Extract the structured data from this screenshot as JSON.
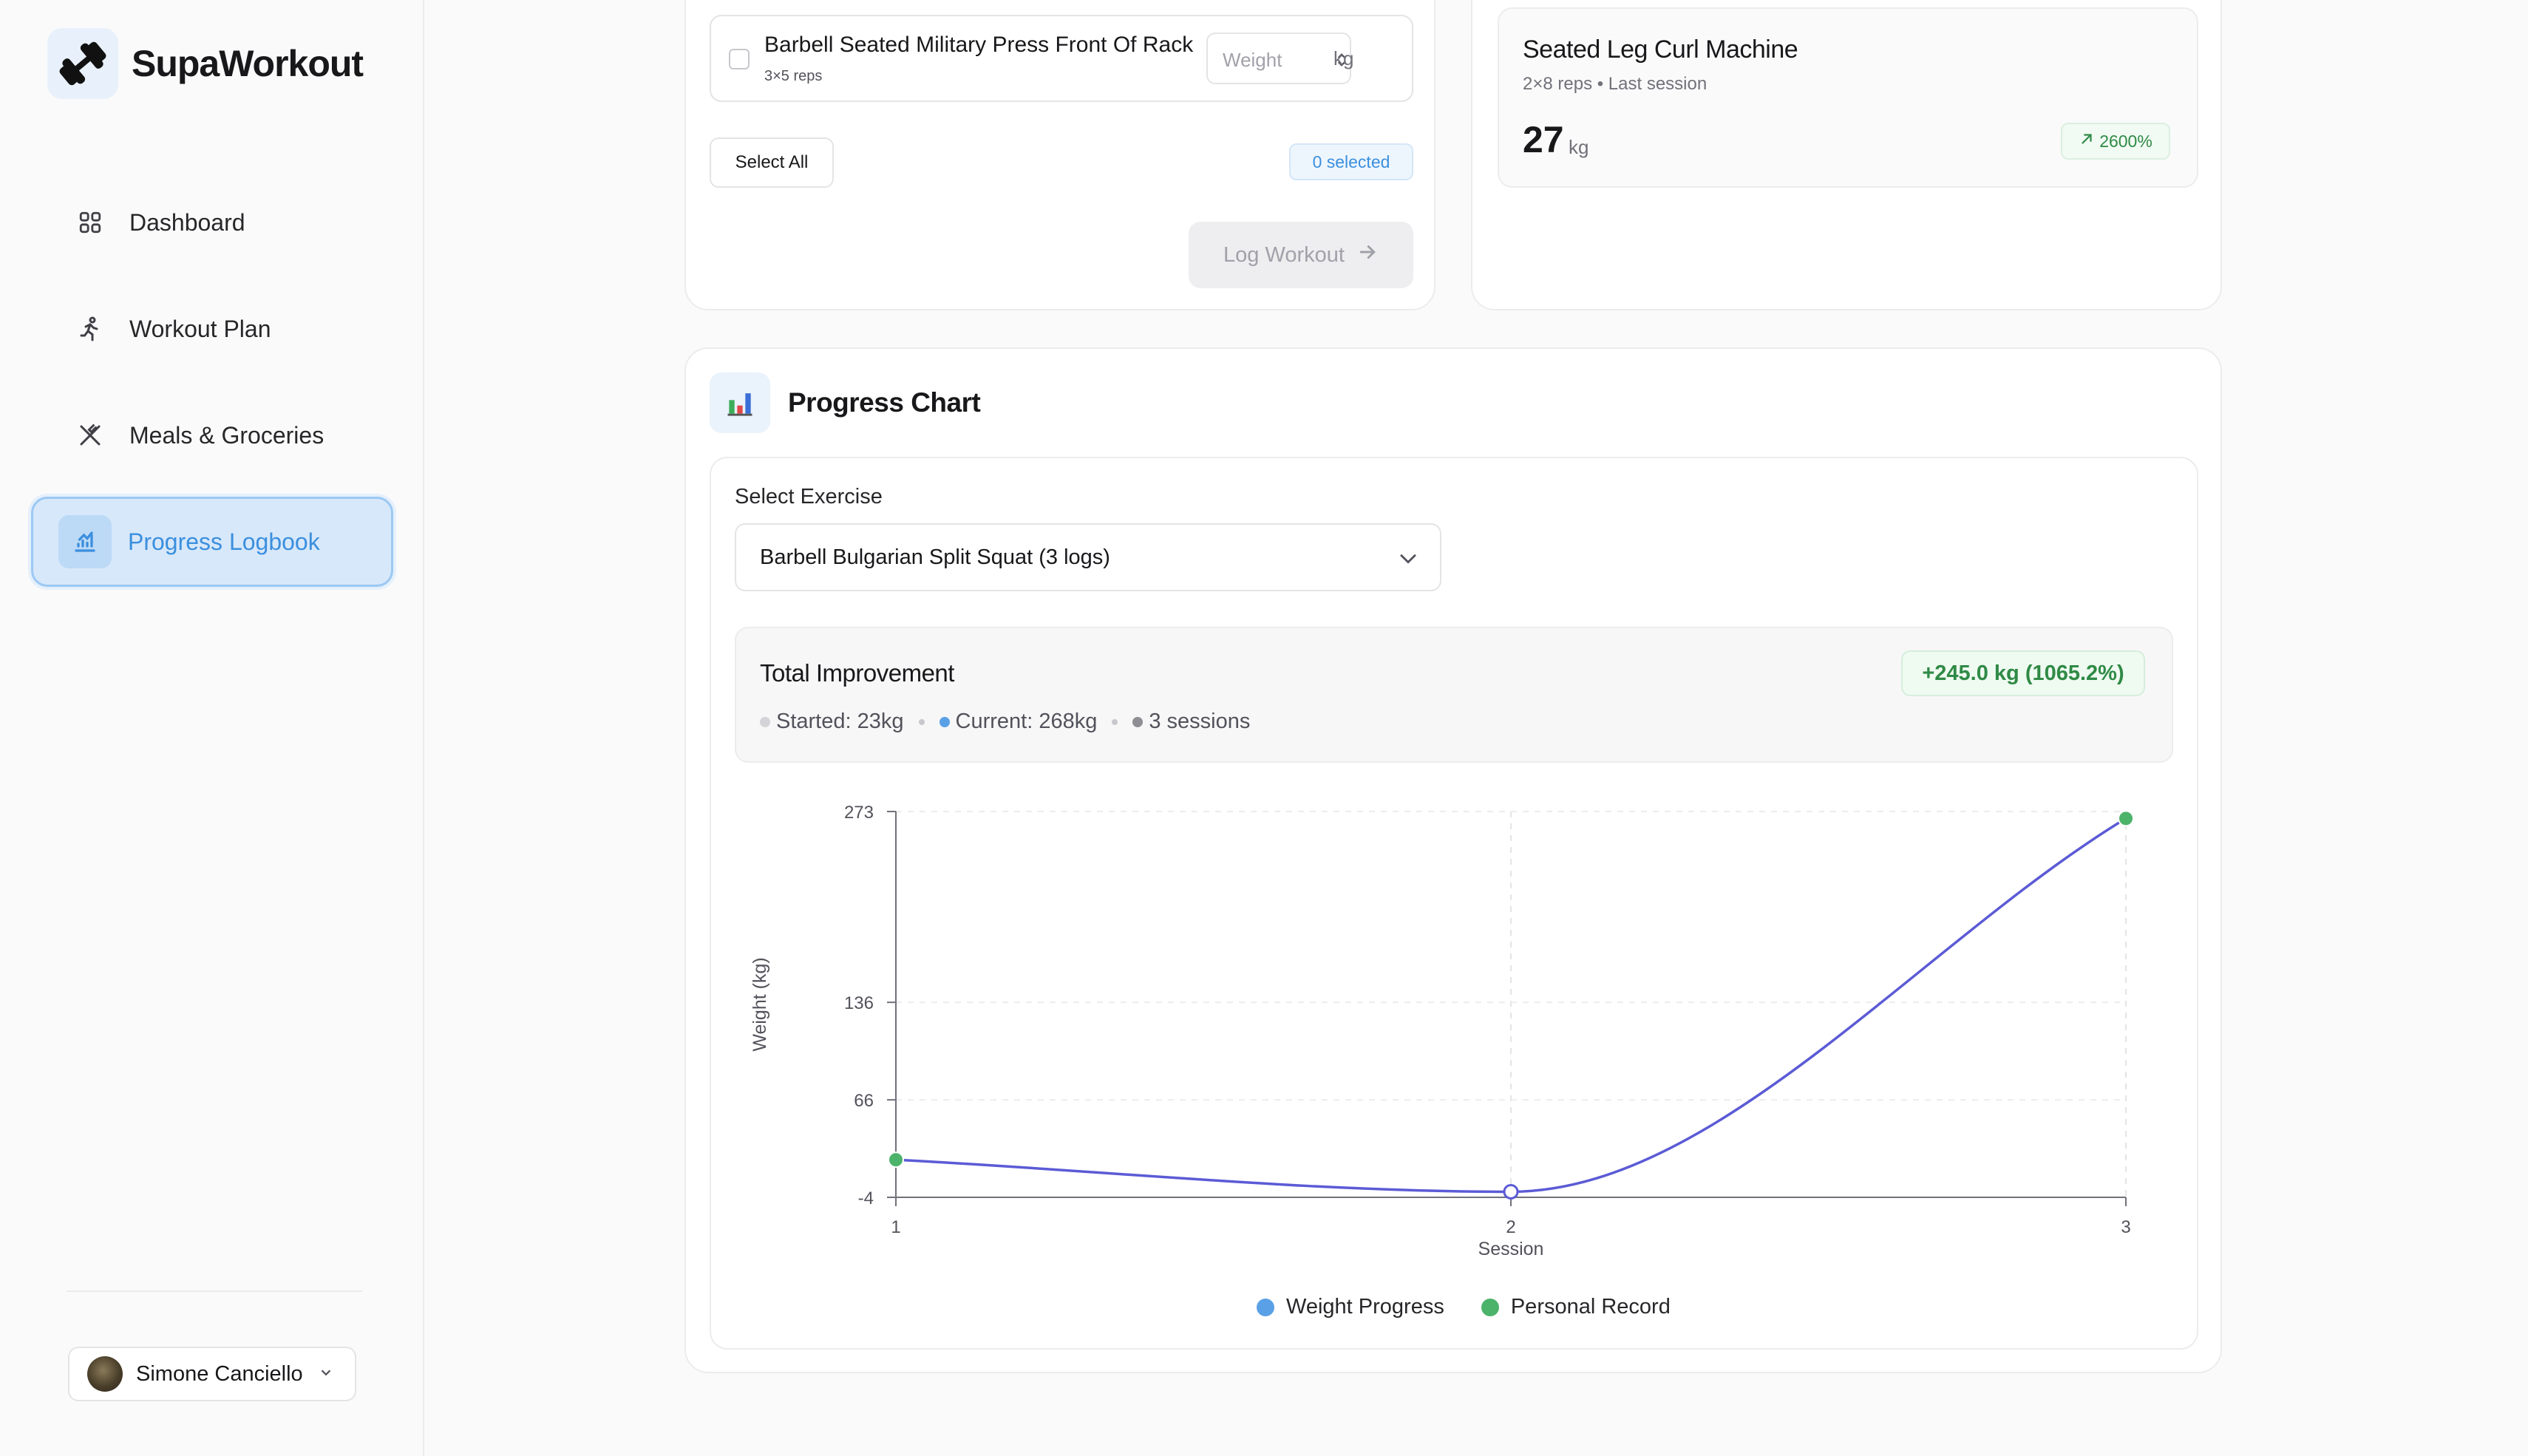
{
  "app": {
    "name": "SupaWorkout"
  },
  "sidebar": {
    "items": [
      {
        "label": "Dashboard",
        "icon": "grid-icon"
      },
      {
        "label": "Workout Plan",
        "icon": "running-icon"
      },
      {
        "label": "Meals & Groceries",
        "icon": "utensils-icon"
      },
      {
        "label": "Progress Logbook",
        "icon": "chart-icon",
        "active": true
      }
    ],
    "user": {
      "name": "Simone Canciello"
    }
  },
  "log_card": {
    "exercise": {
      "name": "Barbell Seated Military Press Front Of Rack",
      "sets": "3×5 reps",
      "weight_placeholder": "Weight",
      "unit": "kg"
    },
    "select_all": "Select All",
    "selected_count": "0 selected",
    "log_button": "Log Workout"
  },
  "last_card": {
    "exercise": "Seated Leg Curl Machine",
    "meta": "2×8 reps • Last session",
    "value": "27",
    "unit": "kg",
    "badge": "2600%"
  },
  "progress": {
    "title": "Progress Chart",
    "select_label": "Select Exercise",
    "selected_exercise": "Barbell Bulgarian Split Squat (3 logs)",
    "total_title": "Total Improvement",
    "total_badge": "+245.0 kg (1065.2%)",
    "started": "Started: 23kg",
    "current": "Current: 268kg",
    "sessions": "3 sessions"
  },
  "colors": {
    "accent": "#3b8fde",
    "line": "#5b5bd6",
    "record": "#4cb36a",
    "weight_dot": "#5aa0e6"
  },
  "chart_data": {
    "type": "line",
    "xlabel": "Session",
    "ylabel": "Weight (kg)",
    "x": [
      1,
      2,
      3
    ],
    "yticks": [
      -4,
      66,
      136,
      273
    ],
    "ylim": [
      -4,
      273
    ],
    "series": [
      {
        "name": "Weight Progress",
        "values": [
          23,
          0,
          268
        ]
      }
    ],
    "personal_records": [
      1,
      3
    ],
    "legend": [
      "Weight Progress",
      "Personal Record"
    ]
  }
}
